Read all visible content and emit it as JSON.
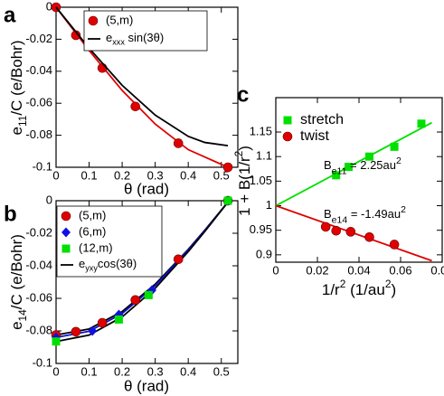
{
  "chart_data": [
    {
      "type": "scatter",
      "panel_label": "a",
      "xlabel": "θ (rad)",
      "ylabel": [
        "e",
        "11",
        "/C (e/Bohr)"
      ],
      "xlim": [
        0,
        0.55
      ],
      "xticks": [
        0,
        0.1,
        0.2,
        0.3,
        0.4,
        0.5
      ],
      "ylim": [
        -0.1,
        0
      ],
      "yticks": [
        -0.1,
        -0.08,
        -0.06,
        -0.04,
        -0.02,
        0
      ],
      "series": [
        {
          "color": "#e00000",
          "marker": "line",
          "x": [
            0,
            0.1,
            0.2,
            0.3,
            0.4,
            0.52
          ],
          "values": [
            0,
            -0.027,
            -0.052,
            -0.073,
            -0.089,
            -0.1
          ]
        },
        {
          "name": "(5,m)",
          "color": "#e00000",
          "marker": "circle",
          "x": [
            0,
            0.06,
            0.14,
            0.24,
            0.37,
            0.52
          ],
          "values": [
            0,
            -0.0175,
            -0.038,
            -0.062,
            -0.085,
            -0.1
          ]
        },
        {
          "name": [
            "e",
            "xxx",
            " sin(3θ)"
          ],
          "color": "#000000",
          "marker": "line",
          "x": [
            0,
            0.1,
            0.2,
            0.3,
            0.4,
            0.45,
            0.52
          ],
          "values": [
            0,
            -0.0256,
            -0.0488,
            -0.0674,
            -0.0807,
            -0.0845,
            -0.0865
          ]
        }
      ]
    },
    {
      "type": "scatter",
      "panel_label": "b",
      "xlabel": "θ (rad)",
      "ylabel": [
        "e",
        "14",
        "/C (e/Bohr)"
      ],
      "xlim": [
        0,
        0.55
      ],
      "xticks": [
        0,
        0.1,
        0.2,
        0.3,
        0.4,
        0.5
      ],
      "ylim": [
        -0.1,
        0
      ],
      "yticks": [
        -0.1,
        -0.08,
        -0.06,
        -0.04,
        -0.02,
        0
      ],
      "series": [
        {
          "color": "#000000",
          "marker": "line",
          "x": [
            0,
            0.1,
            0.2,
            0.3,
            0.4,
            0.45,
            0.52
          ],
          "values": [
            -0.0825,
            -0.0788,
            -0.0681,
            -0.0513,
            -0.0299,
            -0.0181,
            -0.0009
          ]
        },
        {
          "color": "#1010d0",
          "marker": "line",
          "x": [
            0,
            0.1,
            0.2,
            0.3,
            0.4,
            0.45,
            0.52
          ],
          "values": [
            -0.084,
            -0.0802,
            -0.0693,
            -0.0522,
            -0.0304,
            -0.0184,
            -0.0009
          ]
        },
        {
          "color": "#000000",
          "marker": "line",
          "x": [
            0,
            0.1,
            0.2,
            0.3,
            0.4,
            0.45,
            0.52
          ],
          "values": [
            -0.0865,
            -0.0826,
            -0.0714,
            -0.0538,
            -0.0313,
            -0.0189,
            -0.0009
          ]
        },
        {
          "name": "(5,m)",
          "color": "#e00000",
          "marker": "circle",
          "x": [
            0,
            0.06,
            0.14,
            0.24,
            0.37,
            0.52
          ],
          "values": [
            -0.0825,
            -0.0805,
            -0.075,
            -0.061,
            -0.036,
            0
          ]
        },
        {
          "name": "(6,m)",
          "color": "#1010e0",
          "marker": "diamond",
          "x": [
            0,
            0.11,
            0.19,
            0.29,
            0.52
          ],
          "values": [
            -0.084,
            -0.08,
            -0.07,
            -0.055,
            0
          ]
        },
        {
          "name": "(12,m)",
          "color": "#00e000",
          "marker": "square",
          "x": [
            0,
            0.19,
            0.28,
            0.52
          ],
          "values": [
            -0.0865,
            -0.073,
            -0.058,
            0
          ]
        },
        {
          "name": [
            "e",
            "yxy",
            "cos(3θ)"
          ],
          "color": "#000000",
          "marker": "line",
          "x": [],
          "values": []
        }
      ]
    },
    {
      "type": "scatter",
      "panel_label": "c",
      "xlabel": [
        "1/r",
        "2",
        " (1/au",
        "2",
        ")"
      ],
      "ylabel": [
        "1 + B(1/r",
        "2",
        ")"
      ],
      "xlim": [
        0,
        0.08
      ],
      "xticks": [
        0,
        0.02,
        0.04,
        0.06,
        0.08
      ],
      "ylim": [
        0.885,
        1.22
      ],
      "yticks": [
        0.9,
        0.95,
        1,
        1.05,
        1.1,
        1.15
      ],
      "annotations": [
        [
          "B",
          "e11",
          " = 2.25au",
          "2"
        ],
        [
          "B",
          "e14",
          " = -1.49au",
          "2"
        ]
      ],
      "series": [
        {
          "color": "#00e000",
          "marker": "line",
          "x": [
            0,
            0.075
          ],
          "values": [
            1,
            1.169
          ]
        },
        {
          "color": "#e00000",
          "marker": "line",
          "x": [
            0,
            0.075
          ],
          "values": [
            1,
            0.888
          ]
        },
        {
          "name": "stretch",
          "color": "#00e000",
          "marker": "square",
          "x": [
            0.029,
            0.035,
            0.045,
            0.057,
            0.07
          ],
          "values": [
            1.062,
            1.079,
            1.1,
            1.12,
            1.167
          ]
        },
        {
          "name": "twist",
          "color": "#e00000",
          "marker": "circle",
          "x": [
            0.024,
            0.029,
            0.036,
            0.045,
            0.057
          ],
          "values": [
            0.957,
            0.949,
            0.947,
            0.936,
            0.921
          ]
        }
      ]
    }
  ]
}
